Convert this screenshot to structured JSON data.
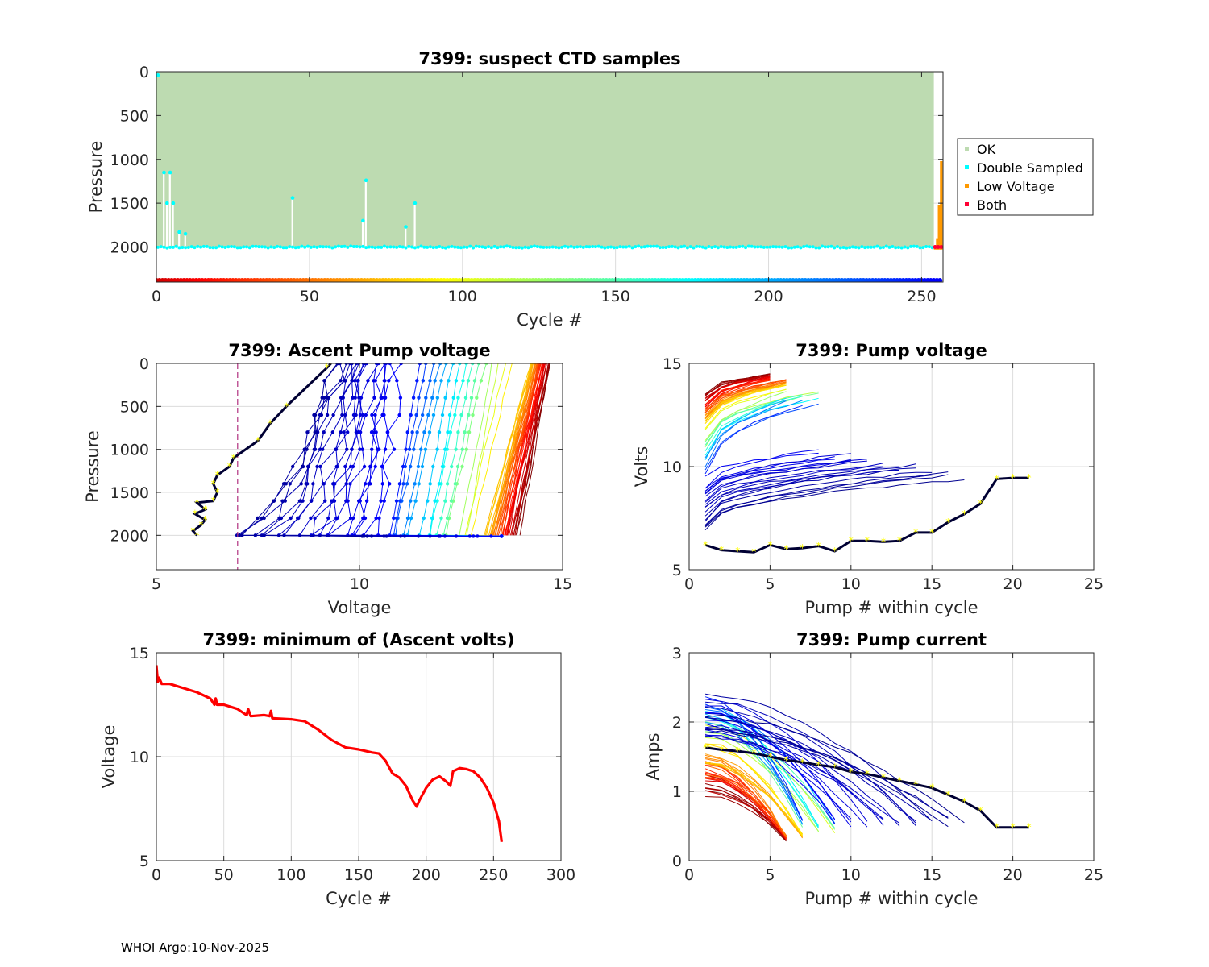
{
  "footer": "WHOI Argo:10-Nov-2025",
  "colors": {
    "ok": "#bddbb1",
    "double_sampled": "#00ffff",
    "low_voltage": "#ff9900",
    "both": "#ff0033",
    "min_volts_line": "#ff0000",
    "cutoff_line": "#b0307f",
    "highlight_marker": "#ffff00",
    "highlight_line": "#000033"
  },
  "chart_data": [
    {
      "id": "ctd",
      "type": "area",
      "title": "7399: suspect CTD samples",
      "xlabel": "Cycle #",
      "ylabel": "Pressure",
      "xlim": [
        0,
        257
      ],
      "ylim": [
        2400,
        0
      ],
      "xticks": [
        0,
        50,
        100,
        150,
        200,
        250
      ],
      "yticks": [
        0,
        500,
        1000,
        1500,
        2000
      ],
      "legend": {
        "position": "outside-right",
        "entries": [
          "OK",
          "Double Sampled",
          "Low Voltage",
          "Both"
        ]
      },
      "ok_max_pressure": 2000,
      "profile_max_pressure": [
        [
          0,
          2000
        ],
        [
          2,
          1150
        ],
        [
          3,
          1500
        ],
        [
          4,
          1150
        ],
        [
          5,
          1500
        ],
        [
          6,
          2000
        ],
        [
          7,
          1830
        ],
        [
          8,
          2000
        ],
        [
          9,
          1850
        ],
        [
          10,
          2000
        ],
        [
          44,
          1440
        ],
        [
          45,
          2000
        ],
        [
          67,
          1700
        ],
        [
          68,
          1240
        ],
        [
          69,
          2000
        ],
        [
          81,
          1770
        ],
        [
          82,
          2000
        ],
        [
          84,
          1500
        ],
        [
          85,
          2000
        ],
        [
          254,
          2000
        ]
      ],
      "double_sampled_points": [
        [
          0,
          40
        ],
        [
          2,
          1150
        ],
        [
          3,
          1500
        ],
        [
          4,
          1150
        ],
        [
          5,
          1500
        ],
        [
          7,
          1830
        ],
        [
          9,
          1850
        ],
        [
          44,
          1440
        ],
        [
          67,
          1700
        ],
        [
          68,
          1240
        ],
        [
          81,
          1770
        ],
        [
          84,
          1500
        ]
      ],
      "low_voltage_bars": [
        [
          254,
          2000
        ],
        [
          254.7,
          1900
        ],
        [
          255.3,
          1520
        ],
        [
          256,
          1020
        ]
      ],
      "both_points": [
        [
          254,
          2000
        ],
        [
          255,
          2000
        ],
        [
          256,
          2000
        ]
      ],
      "cycle_color_bar": {
        "pressure": 2400,
        "from": 0,
        "to": 256
      }
    },
    {
      "id": "ascent",
      "type": "line",
      "title": "7399: Ascent Pump voltage",
      "xlabel": "Voltage",
      "ylabel": "Pressure",
      "xlim": [
        5,
        15
      ],
      "ylim": [
        2400,
        0
      ],
      "xticks": [
        5,
        10,
        15
      ],
      "yticks": [
        0,
        500,
        1000,
        1500,
        2000
      ],
      "reference_line_voltage": 7.0,
      "highlight_profile": [
        [
          6.0,
          2000
        ],
        [
          5.9,
          1950
        ],
        [
          6.1,
          1880
        ],
        [
          6.2,
          1820
        ],
        [
          5.95,
          1750
        ],
        [
          6.2,
          1700
        ],
        [
          6.0,
          1620
        ],
        [
          6.4,
          1600
        ],
        [
          6.5,
          1500
        ],
        [
          6.4,
          1400
        ],
        [
          6.5,
          1300
        ],
        [
          6.8,
          1200
        ],
        [
          6.9,
          1100
        ],
        [
          7.5,
          900
        ],
        [
          7.8,
          700
        ],
        [
          8.2,
          500
        ],
        [
          9.2,
          50
        ],
        [
          9.3,
          0
        ]
      ],
      "family_count": 75
    },
    {
      "id": "pumpv",
      "type": "line",
      "title": "7399: Pump voltage",
      "xlabel": "Pump # within cycle",
      "ylabel": "Volts",
      "xlim": [
        0,
        25
      ],
      "ylim": [
        5,
        15
      ],
      "xticks": [
        0,
        5,
        10,
        15,
        20,
        25
      ],
      "yticks": [
        5,
        10,
        15
      ],
      "highlight_series": [
        6.2,
        5.95,
        5.9,
        5.85,
        6.2,
        6.0,
        6.05,
        6.15,
        5.9,
        6.4,
        6.4,
        6.35,
        6.4,
        6.8,
        6.8,
        7.3,
        7.7,
        8.2,
        9.4,
        9.45,
        9.45
      ],
      "family_count": 70
    },
    {
      "id": "minv",
      "type": "line",
      "title": "7399: minimum of (Ascent volts)",
      "xlabel": "Cycle #",
      "ylabel": "Voltage",
      "xlim": [
        0,
        300
      ],
      "ylim": [
        5,
        15
      ],
      "xticks": [
        0,
        50,
        100,
        150,
        200,
        250,
        300
      ],
      "yticks": [
        5,
        10,
        15
      ],
      "series": [
        [
          0,
          14.4
        ],
        [
          1,
          13.6
        ],
        [
          2,
          13.8
        ],
        [
          4,
          13.5
        ],
        [
          10,
          13.5
        ],
        [
          20,
          13.3
        ],
        [
          30,
          13.1
        ],
        [
          40,
          12.8
        ],
        [
          43,
          12.5
        ],
        [
          44,
          12.8
        ],
        [
          45,
          12.5
        ],
        [
          50,
          12.5
        ],
        [
          60,
          12.3
        ],
        [
          67,
          12.0
        ],
        [
          68,
          12.3
        ],
        [
          70,
          11.95
        ],
        [
          80,
          12.0
        ],
        [
          84,
          11.95
        ],
        [
          85,
          12.2
        ],
        [
          86,
          11.85
        ],
        [
          100,
          11.8
        ],
        [
          110,
          11.7
        ],
        [
          120,
          11.3
        ],
        [
          130,
          10.8
        ],
        [
          140,
          10.45
        ],
        [
          150,
          10.35
        ],
        [
          160,
          10.2
        ],
        [
          165,
          10.15
        ],
        [
          170,
          9.8
        ],
        [
          175,
          9.2
        ],
        [
          180,
          9.0
        ],
        [
          185,
          8.6
        ],
        [
          190,
          7.9
        ],
        [
          193,
          7.6
        ],
        [
          195,
          7.9
        ],
        [
          200,
          8.5
        ],
        [
          205,
          8.9
        ],
        [
          210,
          9.05
        ],
        [
          215,
          8.8
        ],
        [
          218,
          8.6
        ],
        [
          220,
          9.3
        ],
        [
          225,
          9.45
        ],
        [
          230,
          9.4
        ],
        [
          235,
          9.3
        ],
        [
          240,
          9.0
        ],
        [
          245,
          8.5
        ],
        [
          250,
          7.8
        ],
        [
          254,
          6.9
        ],
        [
          256,
          5.9
        ]
      ]
    },
    {
      "id": "current",
      "type": "line",
      "title": "7399: Pump current",
      "xlabel": "Pump # within cycle",
      "ylabel": "Amps",
      "xlim": [
        0,
        25
      ],
      "ylim": [
        0,
        3
      ],
      "xticks": [
        0,
        5,
        10,
        15,
        20,
        25
      ],
      "yticks": [
        0,
        1,
        2,
        3
      ],
      "highlight_series": [
        1.63,
        1.6,
        1.58,
        1.55,
        1.5,
        1.45,
        1.42,
        1.38,
        1.35,
        1.28,
        1.25,
        1.2,
        1.15,
        1.1,
        1.05,
        0.95,
        0.85,
        0.72,
        0.48,
        0.48,
        0.48
      ],
      "family_count": 70
    }
  ]
}
